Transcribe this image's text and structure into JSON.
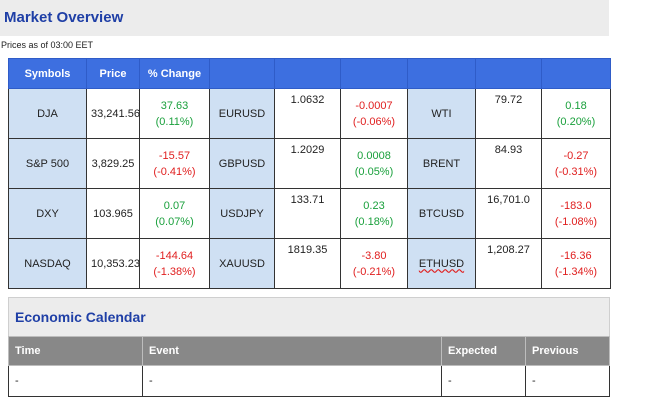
{
  "market_overview": {
    "title": "Market Overview",
    "subtitle": "Prices as of 03:00 EET",
    "headers": [
      "Symbols",
      "Price",
      "% Change"
    ],
    "rows": [
      [
        {
          "symbol": "DJA",
          "price": "33,241.56",
          "change": "37.63",
          "pct": "(0.11%)",
          "dir": "pos"
        },
        {
          "symbol": "EURUSD",
          "price": "1.0632",
          "change": "-0.0007",
          "pct": "(-0.06%)",
          "dir": "neg"
        },
        {
          "symbol": "WTI",
          "price": "79.72",
          "change": "0.18",
          "pct": "(0.20%)",
          "dir": "pos"
        }
      ],
      [
        {
          "symbol": "S&P 500",
          "price": "3,829.25",
          "change": "-15.57",
          "pct": "(-0.41%)",
          "dir": "neg"
        },
        {
          "symbol": "GBPUSD",
          "price": "1.2029",
          "change": "0.0008",
          "pct": "(0.05%)",
          "dir": "pos"
        },
        {
          "symbol": "BRENT",
          "price": "84.93",
          "change": "-0.27",
          "pct": "(-0.31%)",
          "dir": "neg"
        }
      ],
      [
        {
          "symbol": "DXY",
          "price": "103.965",
          "change": "0.07",
          "pct": "(0.07%)",
          "dir": "pos"
        },
        {
          "symbol": "USDJPY",
          "price": "133.71",
          "change": "0.23",
          "pct": "(0.18%)",
          "dir": "pos"
        },
        {
          "symbol": "BTCUSD",
          "price": "16,701.0",
          "change": "-183.0",
          "pct": "(-1.08%)",
          "dir": "neg"
        }
      ],
      [
        {
          "symbol": "NASDAQ",
          "price": "10,353.23",
          "change": "-144.64",
          "pct": "(-1.38%)",
          "dir": "neg"
        },
        {
          "symbol": "XAUUSD",
          "price": "1819.35",
          "change": "-3.80",
          "pct": "(-0.21%)",
          "dir": "neg"
        },
        {
          "symbol": "ETHUSD",
          "price": "1,208.27",
          "change": "-16.36",
          "pct": "(-1.34%)",
          "dir": "neg"
        }
      ]
    ]
  },
  "economic_calendar": {
    "title": "Economic Calendar",
    "headers": [
      "Time",
      "Event",
      "Expected",
      "Previous"
    ],
    "row": [
      "-",
      "-",
      "-",
      "-"
    ]
  },
  "colors": {
    "header_blue": "#3d6fe0",
    "title_blue": "#1f3fa6",
    "positive": "#1aa03c",
    "negative": "#e02020",
    "symbol_bg": "#cfe0f3"
  }
}
